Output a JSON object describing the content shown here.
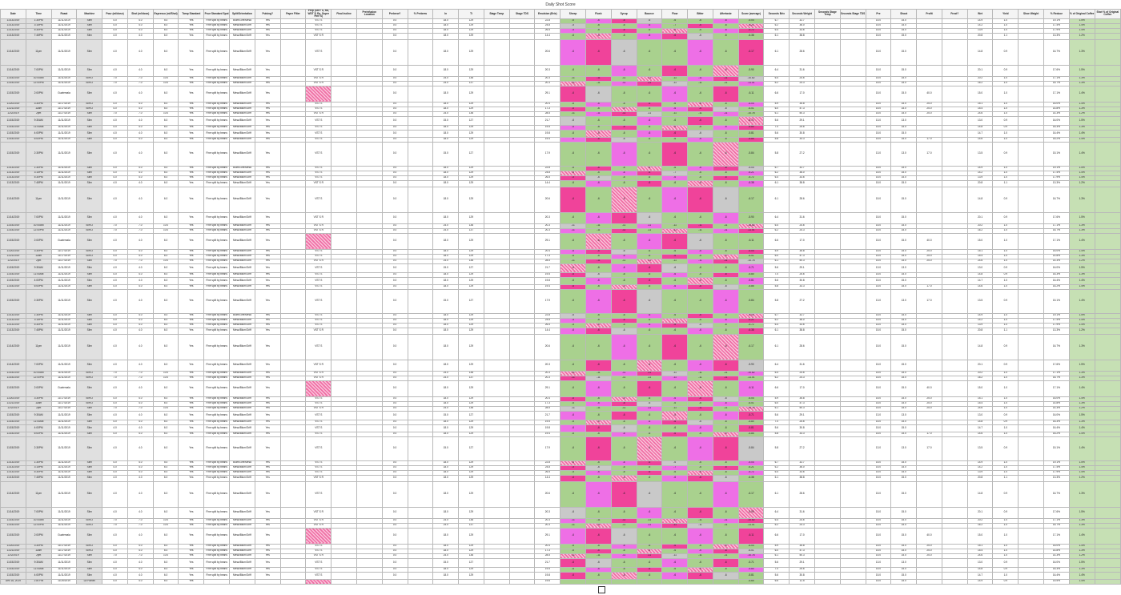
{
  "sheet": {
    "title": "Daily Shot Score"
  },
  "columns": [
    "Date",
    "Time",
    "Roast",
    "Machine",
    "Pour (ml/dose)",
    "Shot (ml/dose)",
    "Espresso (ml/Shot)",
    "Tamp Standard",
    "Pour Standard Spot",
    "Split/Orientation",
    "Pulsing?",
    "Paper Filter",
    "Prep (Stir? S, Ra, WDT P, Ep, Super Fine S)",
    "Final Incline",
    "Preinfusion Location",
    "Prebrew?",
    "% Prebrew",
    "In",
    "Ti",
    "Stage Temp",
    "Stage TDS",
    "Emulsion (Brix)",
    "Sheep",
    "Flush",
    "Syrup",
    "Bounce",
    "Flow",
    "Bitter",
    "Aftertaste",
    "Score (average)",
    "Seconds Brix",
    "Seconds Weight",
    "Seconds Stage Temp",
    "Seconds Stage TDS",
    "Pre",
    "Shoot",
    "Profit",
    "Frost?",
    "Wet",
    "Yield",
    "Shoe Weight",
    "% Reduce",
    "% of Original Coffee",
    "Shot % of Original Coffee"
  ],
  "rows": [
    {
      "date": "11/13/2019",
      "time": "1:30PM",
      "roast": "11/11/2019",
      "machine": "Slim",
      "pour": "4.0",
      "shot": "4.0",
      "esp": "5.0",
      "tamp": "Yes",
      "spot": "Fine split by beans",
      "split": "Blum/Griff/Mesa",
      "pulse": "Yes",
      "paper": "",
      "prep": "VST S",
      "incline": "",
      "loc": "",
      "prebrew": "0.0",
      "pct": "",
      "in": "18.0",
      "ti": "129",
      "st": "",
      "sd": "",
      "brix": "22.8",
      "sheep": "-6",
      "flush": "-6",
      "syrup": "-6",
      "bounce": "-6",
      "flow": "-6",
      "bitter": "-6",
      "after": "-6",
      "score": "-5.04",
      "sb": "6.7",
      "sw": "32.7",
      "sst": "",
      "sstd": "",
      "pre": "15.0",
      "shoot": "15.0",
      "profit": "",
      "frost": "",
      "wet": "14.9",
      "yield": "1.0",
      "shoew": "",
      "red": "19.1%",
      "orig": "1.5%",
      "sorig": ""
    },
    {
      "date": "11/13/2019",
      "time": "3:15PM",
      "roast": "11/11/2019",
      "machine": "Slim",
      "pour": "4.0",
      "shot": "4.0",
      "esp": "6.0",
      "tamp": "Yes",
      "spot": "Fine split by beans",
      "split": "Mesa/Blum/Griff",
      "pulse": "Yes",
      "paper": "",
      "prep": "VST S",
      "incline": "",
      "loc": "",
      "prebrew": "0.0",
      "pct": "",
      "in": "18.0",
      "ti": "129",
      "st": "",
      "sd": "",
      "brix": "24.8",
      "sheep": "-5",
      "flush": "-6",
      "syrup": "-6",
      "bounce": "-6",
      "flow": "-7",
      "bitter": "-6",
      "after": "-6",
      "score": "-6.21",
      "sb": "6.2",
      "sw": "36.0",
      "sst": "",
      "sstd": "",
      "pre": "15.0",
      "shoot": "15.0",
      "profit": "",
      "frost": "",
      "wet": "14.2",
      "yield": "1.0",
      "shoew": "",
      "red": "17.4%",
      "orig": "1.4%",
      "sorig": ""
    },
    {
      "date": "11/13/2019",
      "time": "5:30PM",
      "roast": "11/11/2019",
      "machine": "Slim",
      "pour": "4.0",
      "shot": "4.0",
      "esp": "6.0",
      "tamp": "Yes",
      "spot": "Fine split by beans",
      "split": "Mesa/Blum/Griff",
      "pulse": "Yes",
      "paper": "",
      "prep": "VST S",
      "incline": "",
      "loc": "",
      "prebrew": "0.0",
      "pct": "",
      "in": "18.0",
      "ti": "129",
      "st": "",
      "sd": "",
      "brix": "26.5",
      "sheep": "-5",
      "flush": "-6",
      "syrup": "-6",
      "bounce": "-6",
      "flow": "-6",
      "bitter": "-6",
      "after": "-6",
      "score": "-5.72",
      "sb": "6.4",
      "sw": "33.6",
      "sst": "",
      "sstd": "",
      "pre": "15.0",
      "shoot": "15.0",
      "profit": "",
      "frost": "",
      "wet": "13.9",
      "yield": "1.0",
      "shoew": "",
      "red": "17.9%",
      "orig": "1.4%",
      "sorig": ""
    },
    {
      "date": "11/13/2019",
      "time": "7:45PM",
      "roast": "11/11/2019",
      "machine": "Slim",
      "pour": "4.0",
      "shot": "4.0",
      "esp": "6.0",
      "tamp": "Yes",
      "spot": "Fine split by beans",
      "split": "Mesa/Blum/Griff",
      "pulse": "Yes",
      "paper": "",
      "prep": "VST S R",
      "incline": "",
      "loc": "",
      "prebrew": "0.0",
      "pct": "",
      "in": "18.0",
      "ti": "129",
      "st": "",
      "sd": "",
      "brix": "14.4",
      "sheep": "-6",
      "flush": "-6",
      "syrup": "-6",
      "bounce": "-6",
      "flow": "-6",
      "bitter": "-6",
      "after": "-6",
      "score": "-6.38",
      "sb": "6.1",
      "sw": "38.8",
      "sst": "",
      "sstd": "",
      "pre": "15.0",
      "shoot": "15.0",
      "profit": "",
      "frost": "",
      "wet": "20.8",
      "yield": "1.1",
      "shoew": "",
      "red": "13.3%",
      "orig": "1.2%",
      "sorig": ""
    },
    {
      "date": "11/14/2019",
      "time": "11pm",
      "roast": "11/11/2019",
      "machine": "Slim",
      "pour": "4.0",
      "shot": "4.0",
      "esp": "6.0",
      "tamp": "Yes",
      "spot": "Fine split by beans",
      "split": "Mesa/Blum/Griff",
      "pulse": "Yes",
      "paper": "",
      "prep": "VST S",
      "incline": "",
      "loc": "",
      "prebrew": "0.0",
      "pct": "",
      "in": "18.0",
      "ti": "129",
      "st": "",
      "sd": "",
      "brix": "20.6",
      "sheep": "-6",
      "flush": "-6",
      "syrup": "-6",
      "bounce": "-6",
      "flow": "-6",
      "bitter": "-6",
      "after": "-6",
      "score": "-6.17",
      "sb": "6.1",
      "sw": "28.6",
      "sst": "",
      "sstd": "",
      "pre": "15.0",
      "shoot": "15.0",
      "profit": "",
      "frost": "",
      "wet": "14.8",
      "yield": "0.9",
      "shoew": "",
      "red": "16.7%",
      "orig": "1.3%",
      "sorig": ""
    },
    {
      "date": "11/14/2019",
      "time": "7:00PM",
      "roast": "11/11/2019",
      "machine": "Slim",
      "pour": "4.0",
      "shot": "4.0",
      "esp": "6.0",
      "tamp": "Yes",
      "spot": "Fine split by beans",
      "split": "Mesa/Blum/Griff",
      "pulse": "Yes",
      "paper": "",
      "prep": "VST S R",
      "incline": "",
      "loc": "",
      "prebrew": "0.0",
      "pct": "",
      "in": "18.0",
      "ti": "129",
      "st": "",
      "sd": "",
      "brix": "20.3",
      "sheep": "-6",
      "flush": "-6",
      "syrup": "-6",
      "bounce": "-6",
      "flow": "-6",
      "bitter": "-6",
      "after": "-6",
      "score": "-5.90",
      "sb": "6.4",
      "sw": "31.6",
      "sst": "",
      "sstd": "",
      "pre": "15.0",
      "shoot": "15.0",
      "profit": "",
      "frost": "",
      "wet": "20.1",
      "yield": "0.9",
      "shoew": "",
      "red": "17.6%",
      "orig": "1.5%",
      "sorig": ""
    },
    {
      "date": "11/15/2019",
      "time": "10:00AM",
      "roast": "11/11/2019",
      "machine": "Slim 2",
      "pour": "7.0",
      "shot": "7.0",
      "esp": "10.0",
      "tamp": "Yes",
      "spot": "Fine split by beans",
      "split": "Mesa/Blum/Griff",
      "pulse": "Yes",
      "paper": "",
      "prep": "VST S R",
      "incline": "",
      "loc": "",
      "prebrew": "0.0",
      "pct": "",
      "in": "24.0",
      "ti": "136",
      "st": "",
      "sd": "",
      "brix": "20.3",
      "sheep": "-11",
      "flush": "-11",
      "syrup": "-11",
      "bounce": "-11",
      "flow": "-11",
      "bitter": "-11",
      "after": "-11",
      "score": "-10.82",
      "sb": "6.4",
      "sw": "24.6",
      "sst": "",
      "sstd": "",
      "pre": "15.0",
      "shoot": "15.0",
      "profit": "",
      "frost": "",
      "wet": "20.2",
      "yield": "1.0",
      "shoew": "",
      "red": "17.1%",
      "orig": "1.3%",
      "sorig": ""
    },
    {
      "date": "11/15/2019",
      "time": "12:00PM",
      "roast": "11/11/2019",
      "machine": "Slim 2",
      "pour": "7.0",
      "shot": "7.0",
      "esp": "10.0",
      "tamp": "Yes",
      "spot": "Fine split by beans",
      "split": "Mesa/Blum/Griff",
      "pulse": "Yes",
      "paper": "",
      "prep": "VST S R",
      "incline": "",
      "loc": "",
      "prebrew": "0.0",
      "pct": "",
      "in": "24.0",
      "ti": "137",
      "st": "",
      "sd": "",
      "brix": "20.3",
      "sheep": "-11",
      "flush": "-11",
      "syrup": "-11",
      "bounce": "-11",
      "flow": "-11",
      "bitter": "-11",
      "after": "-11",
      "score": "-11.01",
      "sb": "6.2",
      "sw": "24.3",
      "sst": "",
      "sstd": "",
      "pre": "15.0",
      "shoot": "15.0",
      "profit": "",
      "frost": "",
      "wet": "16.2",
      "yield": "1.0",
      "shoew": "",
      "red": "16.7%",
      "orig": "1.3%",
      "sorig": ""
    },
    {
      "date": "11/15/2019",
      "time": "2:00PM",
      "roast": "Guatemala",
      "machine": "Slim",
      "pour": "4.0",
      "shot": "4.0",
      "esp": "6.0",
      "tamp": "Yes",
      "spot": "Fine split by beans",
      "split": "Mesa/Blum/Griff",
      "pulse": "Yes",
      "paper": "",
      "prep": "",
      "incline": "",
      "loc": "",
      "prebrew": "0.0",
      "pct": "",
      "in": "18.0",
      "ti": "129",
      "st": "",
      "sd": "",
      "brix": "29.1",
      "sheep": "-6",
      "flush": "-6",
      "syrup": "-6",
      "bounce": "-6",
      "flow": "-6",
      "bitter": "-6",
      "after": "-6",
      "score": "-6.11",
      "sb": "6.6",
      "sw": "17.0",
      "sst": "",
      "sstd": "",
      "pre": "15.0",
      "shoot": "15.0",
      "profit": "40.0",
      "frost": "",
      "wet": "15.0",
      "yield": "1.0",
      "shoew": "",
      "red": "17.1%",
      "orig": "1.4%",
      "sorig": ""
    },
    {
      "date": "11/20/2019",
      "time": "3:30PM",
      "roast": "11/17/2019",
      "machine": "Slim 2",
      "pour": "4.0",
      "shot": "4.0",
      "esp": "6.0",
      "tamp": "Yes",
      "spot": "Fine split by beans",
      "split": "Mesa/Blum/Griff",
      "pulse": "Yes",
      "paper": "",
      "prep": "VST S",
      "incline": "",
      "loc": "",
      "prebrew": "0.0",
      "pct": "",
      "in": "18.0",
      "ti": "129",
      "st": "",
      "sd": "",
      "brix": "20.4",
      "sheep": "-6",
      "flush": "-6",
      "syrup": "-6",
      "bounce": "-6",
      "flow": "-6",
      "bitter": "-6",
      "after": "-6",
      "score": "-6.04",
      "sb": "5.9",
      "sw": "35.8",
      "sst": "",
      "sstd": "",
      "pre": "15.0",
      "shoot": "15.0",
      "profit": "25.0",
      "frost": "",
      "wet": "15.1",
      "yield": "1.0",
      "shoew": "",
      "red": "16.0%",
      "orig": "1.4%",
      "sorig": ""
    },
    {
      "date": "11/21/2019",
      "time": "11am",
      "roast": "11/17/2019",
      "machine": "Slim 2",
      "pour": "4.0",
      "shot": "4.0",
      "esp": "6.0",
      "tamp": "Yes",
      "spot": "Fine split by beans",
      "split": "Mesa/Blum/Griff",
      "pulse": "Yes",
      "paper": "",
      "prep": "VST S",
      "incline": "",
      "loc": "",
      "prebrew": "0.0",
      "pct": "",
      "in": "18.0",
      "ti": "129",
      "st": "",
      "sd": "",
      "brix": "17.3",
      "sheep": "-6",
      "flush": "-6",
      "syrup": "-6",
      "bounce": "-6",
      "flow": "-6",
      "bitter": "-6",
      "after": "-6",
      "score": "-6.01",
      "sb": "6.0",
      "sw": "47.3",
      "sst": "",
      "sstd": "",
      "pre": "15.0",
      "shoot": "15.0",
      "profit": "25.0",
      "frost": "",
      "wet": "15.4",
      "yield": "1.0",
      "shoew": "",
      "red": "14.8%",
      "orig": "1.3%",
      "sorig": ""
    },
    {
      "date": "12/2/2019",
      "time": "2pm",
      "roast": "11/27/2019",
      "machine": "Slim",
      "pour": "7.0",
      "shot": "7.0",
      "esp": "10.0",
      "tamp": "Yes",
      "spot": "Fine split by beans",
      "split": "Mesa/Blum/Griff",
      "pulse": "Yes",
      "paper": "",
      "prep": "VST S R",
      "incline": "",
      "loc": "",
      "prebrew": "0.0",
      "pct": "",
      "in": "24.0",
      "ti": "136",
      "st": "",
      "sd": "",
      "brix": "28.5",
      "sheep": "-11",
      "flush": "-11",
      "syrup": "-11",
      "bounce": "-11",
      "flow": "-11",
      "bitter": "-11",
      "after": "-11",
      "score": "-10.78",
      "sb": "6.1",
      "sw": "50.3",
      "sst": "",
      "sstd": "",
      "pre": "15.0",
      "shoot": "15.0",
      "profit": "25.0",
      "frost": "",
      "wet": "24.6",
      "yield": "1.0",
      "shoew": "",
      "red": "14.3%",
      "orig": "1.2%",
      "sorig": ""
    },
    {
      "date": "11/15/2019",
      "time": "9:30AM",
      "roast": "11/11/2019",
      "machine": "Slim",
      "pour": "4.0",
      "shot": "4.0",
      "esp": "6.0",
      "tamp": "Yes",
      "spot": "Fine split by beans",
      "split": "Mesa/Blum/Griff",
      "pulse": "Yes",
      "paper": "",
      "prep": "VST S",
      "incline": "",
      "loc": "",
      "prebrew": "0.0",
      "pct": "",
      "in": "15.0",
      "ti": "127",
      "st": "",
      "sd": "",
      "brix": "21.7",
      "sheep": "-6",
      "flush": "-6",
      "syrup": "-6",
      "bounce": "-6",
      "flow": "-6",
      "bitter": "-6",
      "after": "-6",
      "score": "-5.71",
      "sb": "5.6",
      "sw": "29.1",
      "sst": "",
      "sstd": "",
      "pre": "13.0",
      "shoot": "13.0",
      "profit": "",
      "frost": "",
      "wet": "13.0",
      "yield": "0.9",
      "shoew": "",
      "red": "16.0%",
      "orig": "1.5%",
      "sorig": ""
    },
    {
      "date": "11/15/2019",
      "time": "11:00AM",
      "roast": "11/11/2019",
      "machine": "Slim",
      "pour": "4.0",
      "shot": "4.0",
      "esp": "6.0",
      "tamp": "Yes",
      "spot": "Fine split by beans",
      "split": "Mesa/Blum/Griff",
      "pulse": "Yes",
      "paper": "",
      "prep": "VST S",
      "incline": "",
      "loc": "",
      "prebrew": "0.0",
      "pct": "",
      "in": "18.0",
      "ti": "129",
      "st": "",
      "sd": "",
      "brix": "19.5",
      "sheep": "-6",
      "flush": "-6",
      "syrup": "-6",
      "bounce": "-6",
      "flow": "-6",
      "bitter": "-6",
      "after": "-6",
      "score": "-5.80",
      "sb": "7.0",
      "sw": "25.6",
      "sst": "",
      "sstd": "",
      "pre": "15.0",
      "shoot": "15.0",
      "profit": "",
      "frost": "",
      "wet": "14.8",
      "yield": "0.9",
      "shoew": "",
      "red": "16.3%",
      "orig": "1.3%",
      "sorig": ""
    },
    {
      "date": "11/15/2019",
      "time": "4:00PM",
      "roast": "11/11/2019",
      "machine": "Slim",
      "pour": "4.0",
      "shot": "4.0",
      "esp": "6.0",
      "tamp": "Yes",
      "spot": "Fine split by beans",
      "split": "Mesa/Blum/Griff",
      "pulse": "Yes",
      "paper": "",
      "prep": "VST S",
      "incline": "",
      "loc": "",
      "prebrew": "0.0",
      "pct": "",
      "in": "18.0",
      "ti": "129",
      "st": "",
      "sd": "",
      "brix": "19.8",
      "sheep": "-6",
      "flush": "-6",
      "syrup": "-6",
      "bounce": "-6",
      "flow": "-6",
      "bitter": "-6",
      "after": "-6",
      "score": "-5.81",
      "sb": "5.6",
      "sw": "30.8",
      "sst": "",
      "sstd": "",
      "pre": "15.0",
      "shoot": "15.0",
      "profit": "",
      "frost": "",
      "wet": "14.7",
      "yield": "1.0",
      "shoew": "",
      "red": "16.4%",
      "orig": "1.4%",
      "sorig": ""
    },
    {
      "date": "11/15/2019",
      "time": "6:00PM",
      "roast": "11/11/2019",
      "machine": "Slim",
      "pour": "4.0",
      "shot": "4.0",
      "esp": "6.0",
      "tamp": "Yes",
      "spot": "Fine split by beans",
      "split": "Mesa/Blum/Griff",
      "pulse": "Yes",
      "paper": "",
      "prep": "VST S",
      "incline": "",
      "loc": "",
      "prebrew": "0.0",
      "pct": "",
      "in": "18.0",
      "ti": "129",
      "st": "",
      "sd": "",
      "brix": "19.4",
      "sheep": "-6",
      "flush": "-6",
      "syrup": "-6",
      "bounce": "-6",
      "flow": "-6",
      "bitter": "-6",
      "after": "-6",
      "score": "-5.85",
      "sb": "5.8",
      "sw": "33.3",
      "sst": "",
      "sstd": "",
      "pre": "15.0",
      "shoot": "15.0",
      "profit": "17.0",
      "frost": "",
      "wet": "14.6",
      "yield": "1.0",
      "shoew": "",
      "red": "16.2%",
      "orig": "1.4%",
      "sorig": ""
    },
    {
      "date": "11/15/2019",
      "time": "2:30PM",
      "roast": "11/11/2019",
      "machine": "Slim",
      "pour": "4.0",
      "shot": "4.0",
      "esp": "6.0",
      "tamp": "Yes",
      "spot": "Fine split by beans",
      "split": "Mesa/Blum/Griff",
      "pulse": "Yes",
      "paper": "",
      "prep": "VST S",
      "incline": "",
      "loc": "",
      "prebrew": "0.0",
      "pct": "",
      "in": "15.0",
      "ti": "127",
      "st": "",
      "sd": "",
      "brix": "17.9",
      "sheep": "-6",
      "flush": "-6",
      "syrup": "-6",
      "bounce": "-6",
      "flow": "-6",
      "bitter": "-6",
      "after": "-6",
      "score": "-5.84",
      "sb": "5.8",
      "sw": "27.2",
      "sst": "",
      "sstd": "",
      "pre": "13.0",
      "shoot": "13.0",
      "profit": "17.0",
      "frost": "",
      "wet": "13.5",
      "yield": "0.9",
      "shoew": "",
      "red": "15.1%",
      "orig": "1.4%",
      "sorig": ""
    }
  ],
  "summary_row": {
    "date": "Dec 16, 2019",
    "time": "1:00 PM",
    "roast": "11/26/2019",
    "machine": "La Pavoni",
    "pour": "4.0",
    "shot": "4.0",
    "esp": "6.0",
    "tamp": "Yes",
    "brix": "19.6",
    "score": "-5.65",
    "sb": "6.6",
    "sw": "11.5",
    "pre": "15.0",
    "shoot": "15.0",
    "wet": "14.9",
    "yield": "0.9",
    "red": "15.5%",
    "orig": "1.4%"
  }
}
